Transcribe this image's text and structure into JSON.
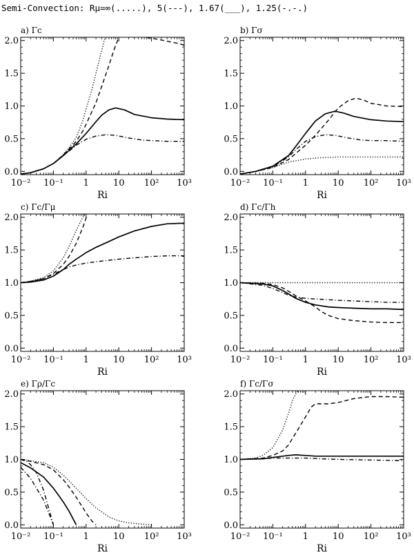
{
  "title": "Semi-Convection: Rμ=∞(.....), 5(---), 1.67(___), 1.25(-.-.)",
  "legend": [
    {
      "label": "∞",
      "style": "dotted"
    },
    {
      "label": "5",
      "style": "dashed"
    },
    {
      "label": "1.67",
      "style": "solid"
    },
    {
      "label": "1.25",
      "style": "dash-dot"
    }
  ],
  "chart_data": [
    {
      "type": "line",
      "panel_label": "a) Γc",
      "xlabel": "Ri",
      "ylabel": "",
      "xscale": "log",
      "xlim": [
        0.01,
        1000
      ],
      "ylim": [
        -0.05,
        2.05
      ],
      "xticks": [
        {
          "label": "10⁻²",
          "value": 0.01
        },
        {
          "label": "10⁻¹",
          "value": 0.1
        },
        {
          "label": "1",
          "value": 1
        },
        {
          "label": "10",
          "value": 10
        },
        {
          "label": "10²",
          "value": 100
        },
        {
          "label": "10³",
          "value": 1000
        }
      ],
      "yticks": [
        "0.0",
        "0.5",
        "1.0",
        "1.5",
        "2.0"
      ],
      "series": [
        {
          "name": "Rμ=∞",
          "style": "dotted",
          "x": [
            0.01,
            0.02,
            0.05,
            0.1,
            0.2,
            0.3,
            0.5,
            0.8,
            1,
            1.5,
            2,
            3,
            3.8
          ],
          "y": [
            -0.04,
            -0.02,
            0.04,
            0.12,
            0.26,
            0.36,
            0.52,
            0.78,
            0.95,
            1.25,
            1.5,
            1.85,
            2.05
          ]
        },
        {
          "name": "Rμ=5",
          "style": "dashed",
          "x": [
            0.01,
            0.02,
            0.05,
            0.1,
            0.2,
            0.3,
            0.5,
            0.8,
            1,
            2,
            3,
            5,
            7,
            10
          ],
          "y": [
            -0.04,
            -0.02,
            0.04,
            0.12,
            0.25,
            0.34,
            0.46,
            0.62,
            0.72,
            1.05,
            1.3,
            1.62,
            1.85,
            2.05
          ]
        },
        {
          "name": "Rμ=1.67",
          "style": "solid",
          "x": [
            0.01,
            0.02,
            0.05,
            0.1,
            0.2,
            0.3,
            0.5,
            1,
            2,
            3,
            5,
            8,
            15,
            30,
            100,
            300,
            1000
          ],
          "y": [
            -0.04,
            -0.02,
            0.04,
            0.12,
            0.24,
            0.32,
            0.42,
            0.58,
            0.76,
            0.86,
            0.94,
            0.97,
            0.94,
            0.87,
            0.82,
            0.8,
            0.79
          ]
        },
        {
          "name": "Rμ=1.25",
          "style": "dash-dot",
          "x": [
            0.01,
            0.02,
            0.05,
            0.1,
            0.2,
            0.3,
            0.5,
            1,
            2,
            4,
            8,
            20,
            50,
            100,
            300,
            1000
          ],
          "y": [
            -0.04,
            -0.02,
            0.04,
            0.12,
            0.24,
            0.31,
            0.4,
            0.49,
            0.54,
            0.56,
            0.55,
            0.51,
            0.48,
            0.47,
            0.46,
            0.46
          ]
        },
        {
          "name": "Rμ=5 (upper)",
          "style": "dashed",
          "x": [
            70,
            150,
            300,
            600,
            1000
          ],
          "y": [
            2.05,
            2.02,
            1.99,
            1.96,
            1.93
          ]
        }
      ]
    },
    {
      "type": "line",
      "panel_label": "b) Γσ",
      "xlabel": "Ri",
      "ylabel": "",
      "xscale": "log",
      "xlim": [
        0.01,
        1000
      ],
      "ylim": [
        -0.05,
        2.05
      ],
      "xticks": [
        {
          "label": "10⁻²",
          "value": 0.01
        },
        {
          "label": "10⁻¹",
          "value": 0.1
        },
        {
          "label": "1",
          "value": 1
        },
        {
          "label": "10",
          "value": 10
        },
        {
          "label": "10²",
          "value": 100
        },
        {
          "label": "10³",
          "value": 1000
        }
      ],
      "yticks": [
        "0.0",
        "0.5",
        "1.0",
        "1.5",
        "2.0"
      ],
      "series": [
        {
          "name": "Rμ=∞",
          "style": "dotted",
          "x": [
            0.01,
            0.03,
            0.1,
            0.3,
            1,
            3,
            10,
            100,
            1000
          ],
          "y": [
            -0.04,
            0.0,
            0.06,
            0.14,
            0.19,
            0.21,
            0.22,
            0.22,
            0.22
          ]
        },
        {
          "name": "Rμ=5",
          "style": "dashed",
          "x": [
            0.01,
            0.03,
            0.1,
            0.3,
            1,
            2,
            5,
            10,
            20,
            35,
            60,
            100,
            300,
            1000
          ],
          "y": [
            -0.04,
            0.0,
            0.06,
            0.18,
            0.4,
            0.55,
            0.78,
            0.97,
            1.08,
            1.12,
            1.09,
            1.04,
            1.0,
            0.99
          ]
        },
        {
          "name": "Rμ=1.67",
          "style": "solid",
          "x": [
            0.01,
            0.03,
            0.1,
            0.3,
            0.5,
            1,
            2,
            4,
            8,
            15,
            30,
            100,
            300,
            1000
          ],
          "y": [
            -0.04,
            0.0,
            0.08,
            0.24,
            0.38,
            0.58,
            0.77,
            0.88,
            0.92,
            0.89,
            0.84,
            0.79,
            0.77,
            0.76
          ]
        },
        {
          "name": "Rμ=1.25",
          "style": "dash-dot",
          "x": [
            0.01,
            0.03,
            0.1,
            0.3,
            0.5,
            1,
            2,
            4,
            8,
            20,
            50,
            100,
            300,
            1000
          ],
          "y": [
            -0.04,
            0.0,
            0.07,
            0.22,
            0.33,
            0.46,
            0.53,
            0.56,
            0.55,
            0.51,
            0.48,
            0.47,
            0.47,
            0.46
          ]
        }
      ]
    },
    {
      "type": "line",
      "panel_label": "c) Γc/Γμ",
      "xlabel": "Ri",
      "ylabel": "",
      "xscale": "log",
      "xlim": [
        0.01,
        1000
      ],
      "ylim": [
        -0.05,
        2.05
      ],
      "xticks": [
        {
          "label": "10⁻²",
          "value": 0.01
        },
        {
          "label": "10⁻¹",
          "value": 0.1
        },
        {
          "label": "1",
          "value": 1
        },
        {
          "label": "10",
          "value": 10
        },
        {
          "label": "10²",
          "value": 100
        },
        {
          "label": "10³",
          "value": 1000
        }
      ],
      "yticks": [
        "0.0",
        "0.5",
        "1.0",
        "1.5",
        "2.0"
      ],
      "series": [
        {
          "name": "Rμ=∞",
          "style": "dotted",
          "x": [
            0.01,
            0.02,
            0.05,
            0.1,
            0.2,
            0.3,
            0.5,
            0.7,
            0.9
          ],
          "y": [
            1.0,
            1.02,
            1.08,
            1.18,
            1.38,
            1.55,
            1.8,
            1.95,
            2.05
          ]
        },
        {
          "name": "Rμ=5",
          "style": "dashed",
          "x": [
            0.01,
            0.02,
            0.05,
            0.1,
            0.2,
            0.3,
            0.5,
            0.8,
            1.1
          ],
          "y": [
            1.0,
            1.02,
            1.06,
            1.14,
            1.28,
            1.4,
            1.6,
            1.85,
            2.05
          ]
        },
        {
          "name": "Rμ=1.67",
          "style": "solid",
          "x": [
            0.01,
            0.02,
            0.05,
            0.1,
            0.2,
            0.3,
            0.5,
            1,
            2,
            5,
            10,
            30,
            100,
            300,
            1000
          ],
          "y": [
            1.0,
            1.01,
            1.04,
            1.1,
            1.2,
            1.28,
            1.36,
            1.46,
            1.54,
            1.63,
            1.7,
            1.79,
            1.86,
            1.9,
            1.91
          ]
        },
        {
          "name": "Rμ=1.25",
          "style": "dash-dot",
          "x": [
            0.01,
            0.02,
            0.05,
            0.1,
            0.2,
            0.3,
            0.5,
            1,
            3,
            10,
            30,
            100,
            300,
            1000
          ],
          "y": [
            1.0,
            1.02,
            1.06,
            1.13,
            1.2,
            1.24,
            1.27,
            1.3,
            1.33,
            1.36,
            1.38,
            1.4,
            1.41,
            1.41
          ]
        }
      ]
    },
    {
      "type": "line",
      "panel_label": "d) Γc/Γh",
      "xlabel": "Ri",
      "ylabel": "",
      "xscale": "log",
      "xlim": [
        0.01,
        1000
      ],
      "ylim": [
        -0.05,
        2.05
      ],
      "xticks": [
        {
          "label": "10⁻²",
          "value": 0.01
        },
        {
          "label": "10⁻¹",
          "value": 0.1
        },
        {
          "label": "1",
          "value": 1
        },
        {
          "label": "10",
          "value": 10
        },
        {
          "label": "10²",
          "value": 100
        },
        {
          "label": "10³",
          "value": 1000
        }
      ],
      "yticks": [
        "0.0",
        "0.5",
        "1.0",
        "1.5",
        "2.0"
      ],
      "series": [
        {
          "name": "Rμ=∞",
          "style": "dotted",
          "x": [
            0.01,
            1000
          ],
          "y": [
            1.0,
            1.0
          ]
        },
        {
          "name": "Rμ=5",
          "style": "dashed",
          "x": [
            0.01,
            0.05,
            0.1,
            0.2,
            0.3,
            0.5,
            1,
            2,
            3,
            5,
            10,
            30,
            100,
            300,
            1000
          ],
          "y": [
            1.0,
            0.99,
            0.97,
            0.92,
            0.87,
            0.8,
            0.72,
            0.63,
            0.56,
            0.5,
            0.45,
            0.42,
            0.4,
            0.39,
            0.39
          ]
        },
        {
          "name": "Rμ=1.67",
          "style": "solid",
          "x": [
            0.01,
            0.05,
            0.1,
            0.2,
            0.3,
            0.5,
            1,
            2,
            5,
            10,
            30,
            100,
            300,
            1000
          ],
          "y": [
            1.0,
            0.98,
            0.95,
            0.88,
            0.83,
            0.76,
            0.7,
            0.66,
            0.63,
            0.62,
            0.61,
            0.6,
            0.6,
            0.59
          ]
        },
        {
          "name": "Rμ=1.25",
          "style": "dash-dot",
          "x": [
            0.01,
            0.05,
            0.1,
            0.2,
            0.3,
            0.5,
            1,
            2,
            5,
            10,
            30,
            100,
            300,
            1000
          ],
          "y": [
            1.0,
            0.96,
            0.91,
            0.85,
            0.81,
            0.78,
            0.76,
            0.75,
            0.74,
            0.73,
            0.72,
            0.71,
            0.7,
            0.7
          ]
        }
      ]
    },
    {
      "type": "line",
      "panel_label": "e) Γρ/Γc",
      "xlabel": "Ri",
      "ylabel": "",
      "xscale": "log",
      "xlim": [
        0.01,
        1000
      ],
      "ylim": [
        -0.05,
        2.05
      ],
      "xticks": [
        {
          "label": "10⁻²",
          "value": 0.01
        },
        {
          "label": "10⁻¹",
          "value": 0.1
        },
        {
          "label": "1",
          "value": 1
        },
        {
          "label": "10",
          "value": 10
        },
        {
          "label": "10²",
          "value": 100
        },
        {
          "label": "10³",
          "value": 1000
        }
      ],
      "yticks": [
        "0.0",
        "0.5",
        "1.0",
        "1.5",
        "2.0"
      ],
      "series": [
        {
          "name": "Rμ=∞",
          "style": "dotted",
          "x": [
            0.01,
            0.02,
            0.05,
            0.1,
            0.2,
            0.5,
            1,
            2,
            5,
            10,
            20,
            50,
            100
          ],
          "y": [
            1.0,
            0.98,
            0.95,
            0.88,
            0.76,
            0.56,
            0.4,
            0.26,
            0.12,
            0.06,
            0.03,
            0.01,
            0.0
          ]
        },
        {
          "name": "Rμ=5",
          "style": "dashed",
          "x": [
            0.01,
            0.02,
            0.05,
            0.1,
            0.2,
            0.3,
            0.5,
            0.8,
            1,
            1.5,
            2
          ],
          "y": [
            1.0,
            0.97,
            0.92,
            0.84,
            0.69,
            0.58,
            0.42,
            0.26,
            0.18,
            0.06,
            0.0
          ]
        },
        {
          "name": "Rμ=1.67",
          "style": "solid",
          "x": [
            0.01,
            0.02,
            0.05,
            0.1,
            0.15,
            0.2,
            0.3,
            0.4,
            0.5
          ],
          "y": [
            0.95,
            0.87,
            0.73,
            0.56,
            0.44,
            0.35,
            0.21,
            0.09,
            0.0
          ]
        },
        {
          "name": "Rμ=1.25",
          "style": "dash-dot",
          "x": [
            0.01,
            0.015,
            0.02,
            0.03,
            0.05,
            0.07,
            0.1
          ],
          "y": [
            1.0,
            0.97,
            0.92,
            0.8,
            0.53,
            0.27,
            0.0
          ]
        },
        {
          "name": "Rμ=1.25 (lower)",
          "style": "dash-dot",
          "x": [
            0.01,
            0.02,
            0.05,
            0.1
          ],
          "y": [
            0.88,
            0.71,
            0.38,
            0.0
          ]
        }
      ]
    },
    {
      "type": "line",
      "panel_label": "f) Γc/Γσ",
      "xlabel": "Ri",
      "ylabel": "",
      "xscale": "log",
      "xlim": [
        0.01,
        1000
      ],
      "ylim": [
        -0.05,
        2.05
      ],
      "xticks": [
        {
          "label": "10⁻²",
          "value": 0.01
        },
        {
          "label": "10⁻¹",
          "value": 0.1
        },
        {
          "label": "1",
          "value": 1
        },
        {
          "label": "10",
          "value": 10
        },
        {
          "label": "10²",
          "value": 100
        },
        {
          "label": "10³",
          "value": 1000
        }
      ],
      "yticks": [
        "0.0",
        "0.5",
        "1.0",
        "1.5",
        "2.0"
      ],
      "series": [
        {
          "name": "Rμ=∞",
          "style": "dotted",
          "x": [
            0.01,
            0.03,
            0.05,
            0.1,
            0.2,
            0.3,
            0.4,
            0.5,
            0.6
          ],
          "y": [
            1.0,
            1.02,
            1.06,
            1.18,
            1.45,
            1.7,
            1.9,
            2.0,
            2.05
          ]
        },
        {
          "name": "Rμ=5",
          "style": "dashed",
          "x": [
            0.01,
            0.05,
            0.1,
            0.2,
            0.3,
            0.5,
            1,
            1.5,
            2,
            3,
            5,
            10,
            30,
            100,
            300,
            1000
          ],
          "y": [
            1.0,
            1.02,
            1.06,
            1.13,
            1.22,
            1.4,
            1.65,
            1.8,
            1.85,
            1.85,
            1.85,
            1.87,
            1.93,
            1.96,
            1.96,
            1.95
          ]
        },
        {
          "name": "Rμ=1.67",
          "style": "solid",
          "x": [
            0.01,
            0.05,
            0.1,
            0.2,
            0.3,
            0.5,
            1,
            2,
            5,
            10,
            100,
            1000
          ],
          "y": [
            1.0,
            1.01,
            1.03,
            1.05,
            1.06,
            1.07,
            1.06,
            1.05,
            1.05,
            1.05,
            1.05,
            1.05
          ]
        },
        {
          "name": "Rμ=1.25",
          "style": "dash-dot",
          "x": [
            0.01,
            0.05,
            0.1,
            0.3,
            1,
            3,
            10,
            100,
            1000
          ],
          "y": [
            1.0,
            1.01,
            1.02,
            1.02,
            1.02,
            1.01,
            1.0,
            0.99,
            0.98
          ]
        }
      ]
    }
  ]
}
